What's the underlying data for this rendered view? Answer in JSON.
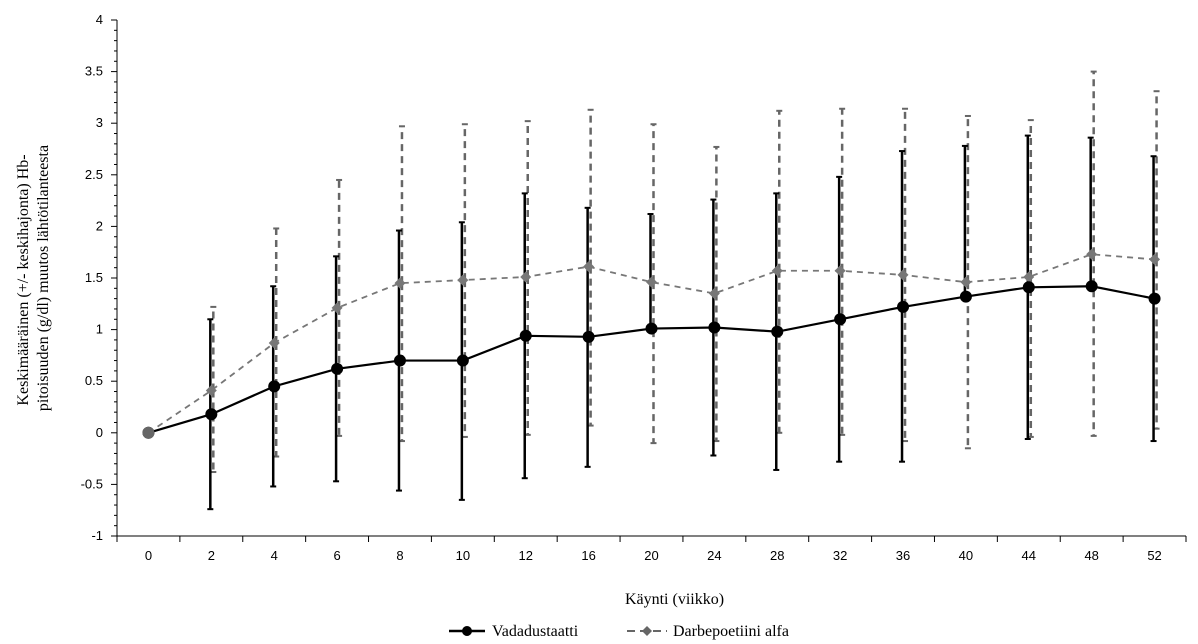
{
  "chart_data": {
    "type": "line",
    "xlabel": "Käynti (viikko)",
    "ylabel_lines": [
      "Keskimääräinen (+/- keskihajonta) Hb-",
      "pitoisuuden (g/dl) muutos lähtötilanteesta"
    ],
    "categories": [
      "0",
      "2",
      "4",
      "6",
      "8",
      "10",
      "12",
      "16",
      "20",
      "24",
      "28",
      "32",
      "36",
      "40",
      "44",
      "48",
      "52"
    ],
    "ylim": [
      -1,
      4
    ],
    "yticks": [
      "-1",
      "-0.5",
      "0",
      "0.5",
      "1",
      "1.5",
      "2",
      "2.5",
      "3",
      "3.5",
      "4"
    ],
    "grid": false,
    "legend_position": "bottom-center",
    "series": [
      {
        "name": "Vadadustaatti",
        "style": "solid",
        "marker": "circle",
        "color": "#000000",
        "values": [
          0,
          0.18,
          0.45,
          0.62,
          0.7,
          0.7,
          0.94,
          0.93,
          1.01,
          1.02,
          0.98,
          1.1,
          1.22,
          1.32,
          1.41,
          1.42,
          1.3
        ],
        "upper": [
          0,
          1.1,
          1.42,
          1.71,
          1.96,
          2.04,
          2.32,
          2.18,
          2.12,
          2.26,
          2.32,
          2.48,
          2.73,
          2.78,
          2.88,
          2.86,
          2.68
        ],
        "lower": [
          0,
          -0.74,
          -0.52,
          -0.47,
          -0.56,
          -0.65,
          -0.44,
          -0.33,
          null,
          -0.22,
          -0.36,
          -0.28,
          -0.28,
          null,
          -0.06,
          null,
          -0.08
        ]
      },
      {
        "name": "Darbepoetiini alfa",
        "style": "dashed",
        "marker": "diamond",
        "color": "#666666",
        "values": [
          0,
          0.41,
          0.87,
          1.21,
          1.45,
          1.48,
          1.51,
          1.61,
          1.46,
          1.35,
          1.57,
          1.57,
          1.53,
          1.46,
          1.51,
          1.73,
          1.68
        ],
        "upper": [
          0,
          1.22,
          1.98,
          2.45,
          2.97,
          2.99,
          3.02,
          3.13,
          2.99,
          2.77,
          3.12,
          3.14,
          3.14,
          3.07,
          3.03,
          3.5,
          3.31
        ],
        "lower": [
          0,
          -0.38,
          -0.23,
          -0.03,
          -0.08,
          -0.04,
          -0.02,
          0.07,
          -0.1,
          -0.08,
          0.0,
          -0.02,
          -0.08,
          -0.15,
          -0.04,
          -0.03,
          0.04
        ]
      }
    ]
  },
  "legend": {
    "items": [
      "Vadadustaatti",
      "Darbepoetiini alfa"
    ]
  }
}
